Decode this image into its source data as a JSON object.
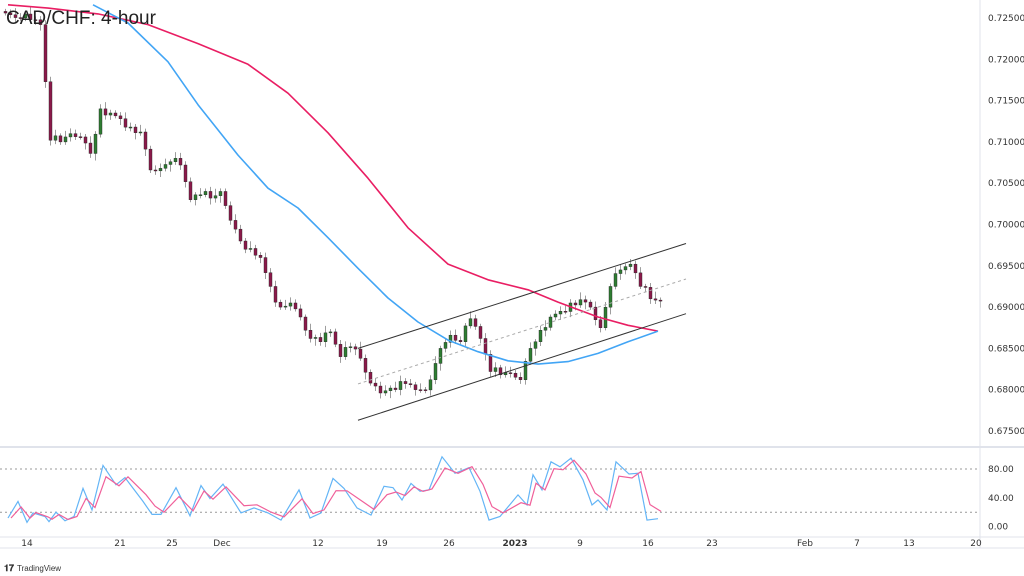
{
  "title": "CAD/CHF: 4-hour",
  "branding": "TradingView",
  "colors": {
    "ma_slow": "#e91e63",
    "ma_fast": "#42a5f5",
    "up": "#2e7d32",
    "down": "#8b1a4a",
    "wick": "#9e9e9e",
    "channel": "#333333",
    "stoch_k": "#64b5f6",
    "stoch_d": "#f0609a"
  },
  "chart_data": [
    {
      "type": "candlestick",
      "title": "CAD/CHF: 4-hour",
      "ylim": [
        0.6735,
        0.727
      ],
      "y_ticks": [
        "0.72500",
        "0.72000",
        "0.71500",
        "0.71000",
        "0.70500",
        "0.70000",
        "0.69500",
        "0.69000",
        "0.68500",
        "0.68000",
        "0.67500"
      ],
      "x_ticks": [
        {
          "label": "14",
          "bar": 1.9
        },
        {
          "label": "21",
          "bar": 11.2
        },
        {
          "label": "25",
          "bar": 16.4
        },
        {
          "label": "Dec",
          "bar": 21.4
        },
        {
          "label": "12",
          "bar": 31
        },
        {
          "label": "19",
          "bar": 37.4
        },
        {
          "label": "26",
          "bar": 44.1
        },
        {
          "label": "2023",
          "bar": 50.7,
          "bold": true
        },
        {
          "label": "9",
          "bar": 57.2
        },
        {
          "label": "16",
          "bar": 64
        },
        {
          "label": "23",
          "bar": 70.4
        },
        {
          "label": "Feb",
          "bar": 79.7
        },
        {
          "label": "7",
          "bar": 84.9
        },
        {
          "label": "13",
          "bar": 90.1
        },
        {
          "label": "20",
          "bar": 96.8
        }
      ],
      "closes": [
        0.7254,
        0.725,
        0.7248,
        0.7242,
        0.7102,
        0.71,
        0.711,
        0.7106,
        0.7086,
        0.714,
        0.7135,
        0.7128,
        0.7118,
        0.7112,
        0.7066,
        0.7068,
        0.7076,
        0.7072,
        0.703,
        0.7036,
        0.7032,
        0.704,
        0.7005,
        0.698,
        0.6971,
        0.696,
        0.6925,
        0.69,
        0.6905,
        0.6888,
        0.6862,
        0.6858,
        0.687,
        0.684,
        0.6852,
        0.6838,
        0.6808,
        0.6796,
        0.6802,
        0.681,
        0.6806,
        0.68,
        0.6812,
        0.685,
        0.6866,
        0.6858,
        0.6886,
        0.6862,
        0.6822,
        0.6818,
        0.682,
        0.6812,
        0.685,
        0.6872,
        0.6888,
        0.6895,
        0.6905,
        0.6909,
        0.69,
        0.6875,
        0.6925,
        0.6945,
        0.6952,
        0.6925,
        0.691,
        0.6908
      ],
      "moving_averages": [
        {
          "color": "#e91e63",
          "points": [
            [
              0,
              0.7266
            ],
            [
              4,
              0.7262
            ],
            [
              9,
              0.7255
            ],
            [
              14,
              0.7242
            ],
            [
              19,
              0.7219
            ],
            [
              24,
              0.7194
            ],
            [
              28,
              0.7159
            ],
            [
              32,
              0.7111
            ],
            [
              36,
              0.7056
            ],
            [
              40,
              0.6996
            ],
            [
              44,
              0.6952
            ],
            [
              48,
              0.6933
            ],
            [
              52,
              0.6921
            ],
            [
              55,
              0.6906
            ],
            [
              59,
              0.6888
            ],
            [
              62,
              0.6878
            ],
            [
              65,
              0.6871
            ]
          ]
        },
        {
          "color": "#42a5f5",
          "points": [
            [
              8.5,
              0.7266
            ],
            [
              12,
              0.7244
            ],
            [
              16,
              0.7197
            ],
            [
              19,
              0.7145
            ],
            [
              23,
              0.7084
            ],
            [
              26,
              0.7044
            ],
            [
              29,
              0.702
            ],
            [
              32,
              0.6984
            ],
            [
              35,
              0.6947
            ],
            [
              38,
              0.6911
            ],
            [
              41,
              0.6882
            ],
            [
              44,
              0.686
            ],
            [
              47,
              0.6846
            ],
            [
              50,
              0.6835
            ],
            [
              53,
              0.6831
            ],
            [
              56,
              0.6834
            ],
            [
              59,
              0.6844
            ],
            [
              62,
              0.6858
            ],
            [
              65,
              0.6871
            ]
          ]
        }
      ],
      "channel": {
        "upper": [
          [
            35,
            0.685
          ],
          [
            67.8,
            0.6977
          ]
        ],
        "middle": [
          [
            35,
            0.6807
          ],
          [
            67.8,
            0.6934
          ]
        ],
        "lower": [
          [
            35,
            0.6763
          ],
          [
            67.8,
            0.6892
          ]
        ]
      }
    },
    {
      "type": "line",
      "ylim": [
        0,
        100
      ],
      "y_ticks": [
        "80.00",
        "40.00",
        "0.00"
      ],
      "levels": [
        80,
        20
      ],
      "series_k": [
        [
          0,
          12
        ],
        [
          1,
          35
        ],
        [
          1.9,
          6
        ],
        [
          2.5,
          19
        ],
        [
          3.7,
          14
        ],
        [
          4.1,
          7
        ],
        [
          4.8,
          20
        ],
        [
          5.7,
          8
        ],
        [
          6.6,
          14
        ],
        [
          7.5,
          53
        ],
        [
          8.4,
          23
        ],
        [
          9.5,
          85
        ],
        [
          10.8,
          58
        ],
        [
          11.7,
          68
        ],
        [
          13.5,
          35
        ],
        [
          14.4,
          17
        ],
        [
          15.3,
          17
        ],
        [
          16.8,
          54
        ],
        [
          18.2,
          15
        ],
        [
          19.3,
          57
        ],
        [
          20.2,
          39
        ],
        [
          21.5,
          59
        ],
        [
          23.3,
          19
        ],
        [
          24.6,
          26
        ],
        [
          26,
          19
        ],
        [
          27.3,
          9
        ],
        [
          29.1,
          51
        ],
        [
          30.2,
          12
        ],
        [
          31.3,
          19
        ],
        [
          32.5,
          67
        ],
        [
          33.6,
          53
        ],
        [
          34.9,
          26
        ],
        [
          36.3,
          16
        ],
        [
          37.6,
          56
        ],
        [
          38.5,
          54
        ],
        [
          39.4,
          37
        ],
        [
          40.3,
          60
        ],
        [
          41.2,
          49
        ],
        [
          42.1,
          51
        ],
        [
          43.4,
          97
        ],
        [
          44.7,
          74
        ],
        [
          46.1,
          82
        ],
        [
          47.2,
          49
        ],
        [
          48.1,
          9
        ],
        [
          49.2,
          14
        ],
        [
          51,
          44
        ],
        [
          51.9,
          30
        ],
        [
          52.5,
          72
        ],
        [
          53.4,
          51
        ],
        [
          54.3,
          90
        ],
        [
          55.2,
          83
        ],
        [
          56.3,
          95
        ],
        [
          57.5,
          65
        ],
        [
          58.4,
          30
        ],
        [
          59,
          37
        ],
        [
          59.9,
          23
        ],
        [
          60.8,
          90
        ],
        [
          62.1,
          73
        ],
        [
          63,
          74
        ],
        [
          63.9,
          9
        ],
        [
          65,
          11
        ]
      ]
    }
  ]
}
